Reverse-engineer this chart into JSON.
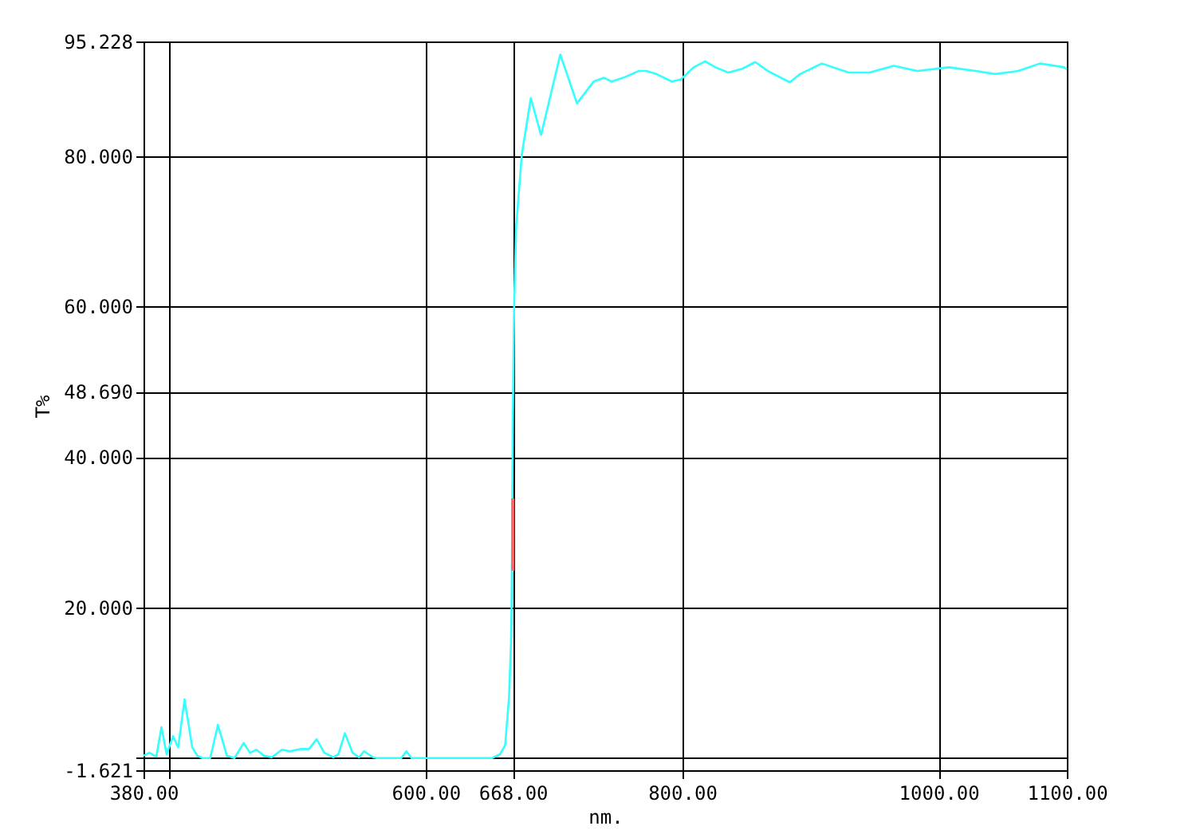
{
  "chart_data": {
    "type": "line",
    "xlabel": "nm.",
    "ylabel": "T%",
    "xlim": [
      380,
      1100
    ],
    "ylim": [
      -1.621,
      95.228
    ],
    "xticks": [
      {
        "value": 380,
        "label": "380.00"
      },
      {
        "value": 400,
        "label": null
      },
      {
        "value": 600,
        "label": "600.00"
      },
      {
        "value": 668,
        "label": "668.00"
      },
      {
        "value": 800,
        "label": "800.00"
      },
      {
        "value": 1000,
        "label": "1000.00"
      },
      {
        "value": 1100,
        "label": "1100.00"
      }
    ],
    "yticks": [
      -1.621,
      {
        "value": 0,
        "label": null
      },
      {
        "value": 20,
        "label": "20.000"
      },
      {
        "value": 40,
        "label": "40.000"
      },
      {
        "value": 48.69,
        "label": "48.690"
      },
      {
        "value": 60,
        "label": "60.000"
      },
      {
        "value": 80,
        "label": "80.000"
      },
      95.228
    ],
    "grid": true,
    "series": [
      {
        "color": "#33ffff",
        "x": [
          380,
          384.6,
          390,
          394,
          398,
          403,
          407,
          412,
          418,
          422,
          426,
          432,
          438,
          445,
          451,
          458,
          463,
          468,
          474,
          480,
          488,
          494,
          503,
          509,
          515,
          521,
          528,
          532,
          537,
          543,
          548,
          552,
          559,
          562,
          581,
          585,
          589,
          652,
          658,
          662,
          665,
          666.5,
          667,
          667.5,
          668,
          669,
          670.6,
          675,
          682,
          690,
          705,
          718,
          731,
          739,
          745,
          755.5,
          766,
          772,
          780,
          792,
          799,
          809,
          818,
          826,
          836,
          847,
          857,
          867,
          884,
          892,
          909,
          930,
          946,
          965,
          983.5,
          1008,
          1029,
          1044,
          1062,
          1079,
          1098,
          1100
        ],
        "values": [
          0.3,
          0.7,
          0.2,
          4.1,
          0.5,
          2.9,
          1.4,
          7.8,
          1.4,
          0.3,
          0,
          0,
          4.4,
          0.3,
          0,
          2,
          0.7,
          1.1,
          0.3,
          0.1,
          1.1,
          0.9,
          1.2,
          1.2,
          2.5,
          0.7,
          0.1,
          0.5,
          3.3,
          0.7,
          0.1,
          0.9,
          0.1,
          0,
          0,
          0.9,
          0,
          0,
          0.5,
          1.7,
          8,
          15,
          20,
          30,
          45,
          60,
          70.6,
          80.2,
          87.7,
          82.8,
          93.5,
          87,
          89.9,
          90.4,
          89.9,
          90.5,
          91.3,
          91.3,
          90.9,
          89.9,
          90.2,
          91.8,
          92.6,
          91.8,
          91.1,
          91.6,
          92.5,
          91.3,
          89.8,
          90.9,
          92.3,
          91.1,
          91.1,
          92,
          91.3,
          91.8,
          91.3,
          90.9,
          91.3,
          92.3,
          91.8,
          91.5
        ]
      },
      {
        "color": "#ff6666",
        "x": [
          668,
          668
        ],
        "values": [
          24.9,
          34.5
        ]
      }
    ]
  }
}
